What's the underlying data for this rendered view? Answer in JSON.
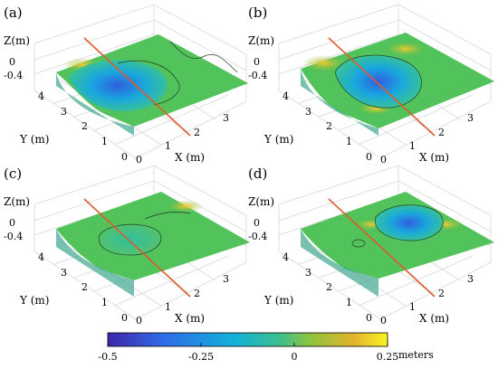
{
  "chart_data": {
    "type": "surface3d",
    "panels": [
      {
        "label": "(a)",
        "zlabel": "Z(m)",
        "ylabel": "Y (m)",
        "xlabel": "X (m)",
        "z_ticks": [
          "0",
          "-0.4"
        ],
        "y_ticks": [
          "0",
          "1",
          "2",
          "3",
          "4"
        ],
        "x_ticks": [
          "0",
          "1",
          "2",
          "3"
        ],
        "surface": "erosion hollow along left side, deep blue centre",
        "deepest_z": -0.45
      },
      {
        "label": "(b)",
        "zlabel": "Z(m)",
        "ylabel": "Y (m)",
        "xlabel": "X (m)",
        "z_ticks": [
          "0",
          "-0.4"
        ],
        "y_ticks": [
          "0",
          "1",
          "2",
          "3",
          "4"
        ],
        "x_ticks": [
          "0",
          "1",
          "2",
          "3"
        ],
        "surface": "large central scour hole",
        "deepest_z": -0.45
      },
      {
        "label": "(c)",
        "zlabel": "Z(m)",
        "ylabel": "Y (m)",
        "xlabel": "X (m)",
        "z_ticks": [
          "0",
          "-0.4"
        ],
        "y_ticks": [
          "0",
          "1",
          "2",
          "3",
          "4"
        ],
        "x_ticks": [
          "0",
          "1",
          "2",
          "3"
        ],
        "surface": "shallow depression, nearly flat bed",
        "deepest_z": -0.12
      },
      {
        "label": "(d)",
        "zlabel": "Z(m)",
        "ylabel": "Y (m)",
        "xlabel": "X (m)",
        "z_ticks": [
          "0",
          "-0.4"
        ],
        "y_ticks": [
          "0",
          "1",
          "2",
          "3",
          "4"
        ],
        "x_ticks": [
          "0",
          "1",
          "2",
          "3"
        ],
        "surface": "scour hole at far side with small pit",
        "deepest_z": -0.3
      }
    ],
    "colorbar": {
      "label": "meters",
      "range": [
        -0.5,
        0.25
      ],
      "ticks": [
        "-0.5",
        "-0.25",
        "0",
        "0.25"
      ],
      "colormap": [
        "#3e26a8",
        "#2f6ce8",
        "#12b1d9",
        "#3ebf8a",
        "#8cc43e",
        "#e3b32c",
        "#f9f522"
      ]
    },
    "cross_section_line_color": "#e05a2b"
  }
}
